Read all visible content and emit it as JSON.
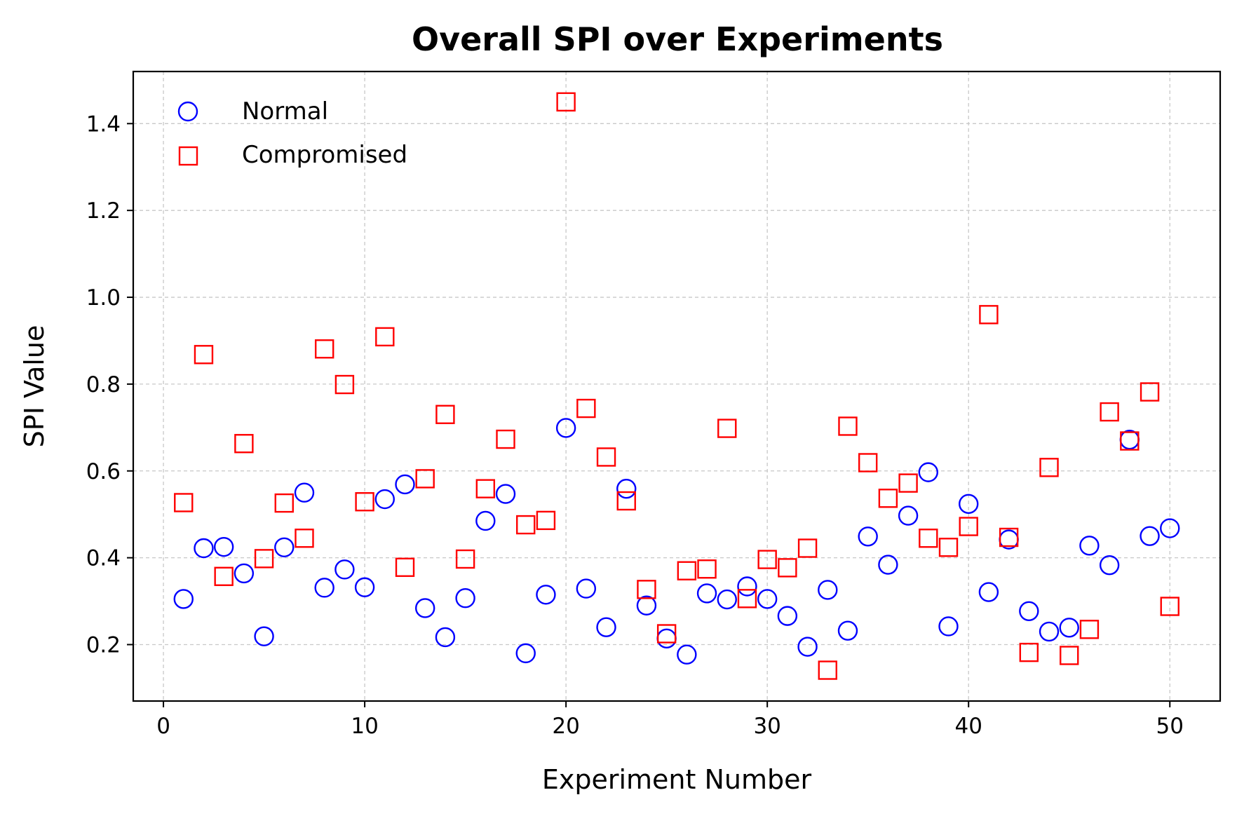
{
  "chart_data": {
    "type": "scatter",
    "title": "Overall SPI over Experiments",
    "xlabel": "Experiment Number",
    "ylabel": "SPI Value",
    "xlim": [
      -1.5,
      52.5
    ],
    "ylim": [
      0.07,
      1.52
    ],
    "xticks": [
      0,
      10,
      20,
      30,
      40,
      50
    ],
    "xtick_labels": [
      "0",
      "10",
      "20",
      "30",
      "40",
      "50"
    ],
    "yticks": [
      0.2,
      0.4,
      0.6,
      0.8,
      1.0,
      1.2,
      1.4
    ],
    "ytick_labels": [
      "0.2",
      "0.4",
      "0.6",
      "0.8",
      "1.0",
      "1.2",
      "1.4"
    ],
    "grid": true,
    "legend_position": "top-left",
    "x": [
      1,
      2,
      3,
      4,
      5,
      6,
      7,
      8,
      9,
      10,
      11,
      12,
      13,
      14,
      15,
      16,
      17,
      18,
      19,
      20,
      21,
      22,
      23,
      24,
      25,
      26,
      27,
      28,
      29,
      30,
      31,
      32,
      33,
      34,
      35,
      36,
      37,
      38,
      39,
      40,
      41,
      42,
      43,
      44,
      45,
      46,
      47,
      48,
      49,
      50
    ],
    "series": [
      {
        "name": "Normal",
        "marker": "circle",
        "color": "#0000ff",
        "values": [
          0.305,
          0.422,
          0.425,
          0.364,
          0.219,
          0.424,
          0.55,
          0.331,
          0.373,
          0.332,
          0.535,
          0.569,
          0.284,
          0.217,
          0.307,
          0.485,
          0.547,
          0.18,
          0.315,
          0.699,
          0.329,
          0.24,
          0.559,
          0.29,
          0.214,
          0.177,
          0.318,
          0.304,
          0.334,
          0.305,
          0.266,
          0.195,
          0.326,
          0.232,
          0.449,
          0.384,
          0.497,
          0.597,
          0.242,
          0.524,
          0.321,
          0.442,
          0.277,
          0.23,
          0.239,
          0.428,
          0.383,
          0.672,
          0.45,
          0.468
        ]
      },
      {
        "name": "Compromised",
        "marker": "square",
        "color": "#ff0000",
        "values": [
          0.527,
          0.868,
          0.357,
          0.663,
          0.398,
          0.526,
          0.445,
          0.881,
          0.799,
          0.529,
          0.909,
          0.378,
          0.582,
          0.73,
          0.397,
          0.559,
          0.673,
          0.476,
          0.486,
          1.45,
          0.744,
          0.632,
          0.531,
          0.327,
          0.225,
          0.37,
          0.374,
          0.698,
          0.306,
          0.396,
          0.377,
          0.422,
          0.141,
          0.703,
          0.619,
          0.537,
          0.572,
          0.445,
          0.424,
          0.472,
          0.96,
          0.447,
          0.182,
          0.608,
          0.175,
          0.235,
          0.736,
          0.669,
          0.782,
          0.288
        ]
      }
    ]
  }
}
